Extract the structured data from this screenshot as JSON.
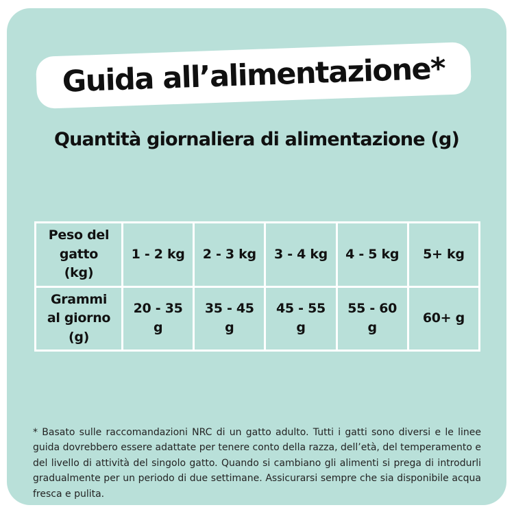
{
  "title": "Guida all’alimentazione*",
  "subtitle": "Quantità giornaliera di alimentazione (g)",
  "table": {
    "rows": [
      {
        "header": "Peso del gatto (kg)",
        "cells": [
          "1 - 2 kg",
          "2 - 3 kg",
          "3 - 4 kg",
          "4 - 5 kg",
          "5+ kg"
        ]
      },
      {
        "header": "Grammi al giorno (g)",
        "cells": [
          "20 - 35 g",
          "35 - 45 g",
          "45 - 55 g",
          "55 - 60 g",
          "60+ g"
        ]
      }
    ]
  },
  "chart_data": {
    "type": "table",
    "title": "Quantità giornaliera di alimentazione (g)",
    "row_headers": [
      "Peso del gatto (kg)",
      "Grammi al giorno (g)"
    ],
    "columns": [
      {
        "weight": "1 - 2 kg",
        "grams": "20 - 35 g"
      },
      {
        "weight": "2 - 3 kg",
        "grams": "35 - 45 g"
      },
      {
        "weight": "3 - 4 kg",
        "grams": "45 - 55 g"
      },
      {
        "weight": "4 - 5 kg",
        "grams": "55 - 60 g"
      },
      {
        "weight": "5+ kg",
        "grams": "60+ g"
      }
    ]
  },
  "footnote": "* Basato sulle raccomandazioni NRC di un gatto adulto. Tutti i gatti sono diversi e le linee guida dovrebbero essere adattate per tenere conto della razza, dell’età, del temperamento e del livello di attività del singolo gatto. Quando si cambiano gli alimenti si prega di introdurli gradualmente per un periodo di due settimane. Assicurarsi sempre che sia disponibile acqua fresca e pulita.",
  "colors": {
    "page_background": "#ffffff",
    "card_background": "#b9e0d9",
    "banner_background": "#ffffff",
    "text": "#111111",
    "table_grid": "#ffffff"
  }
}
